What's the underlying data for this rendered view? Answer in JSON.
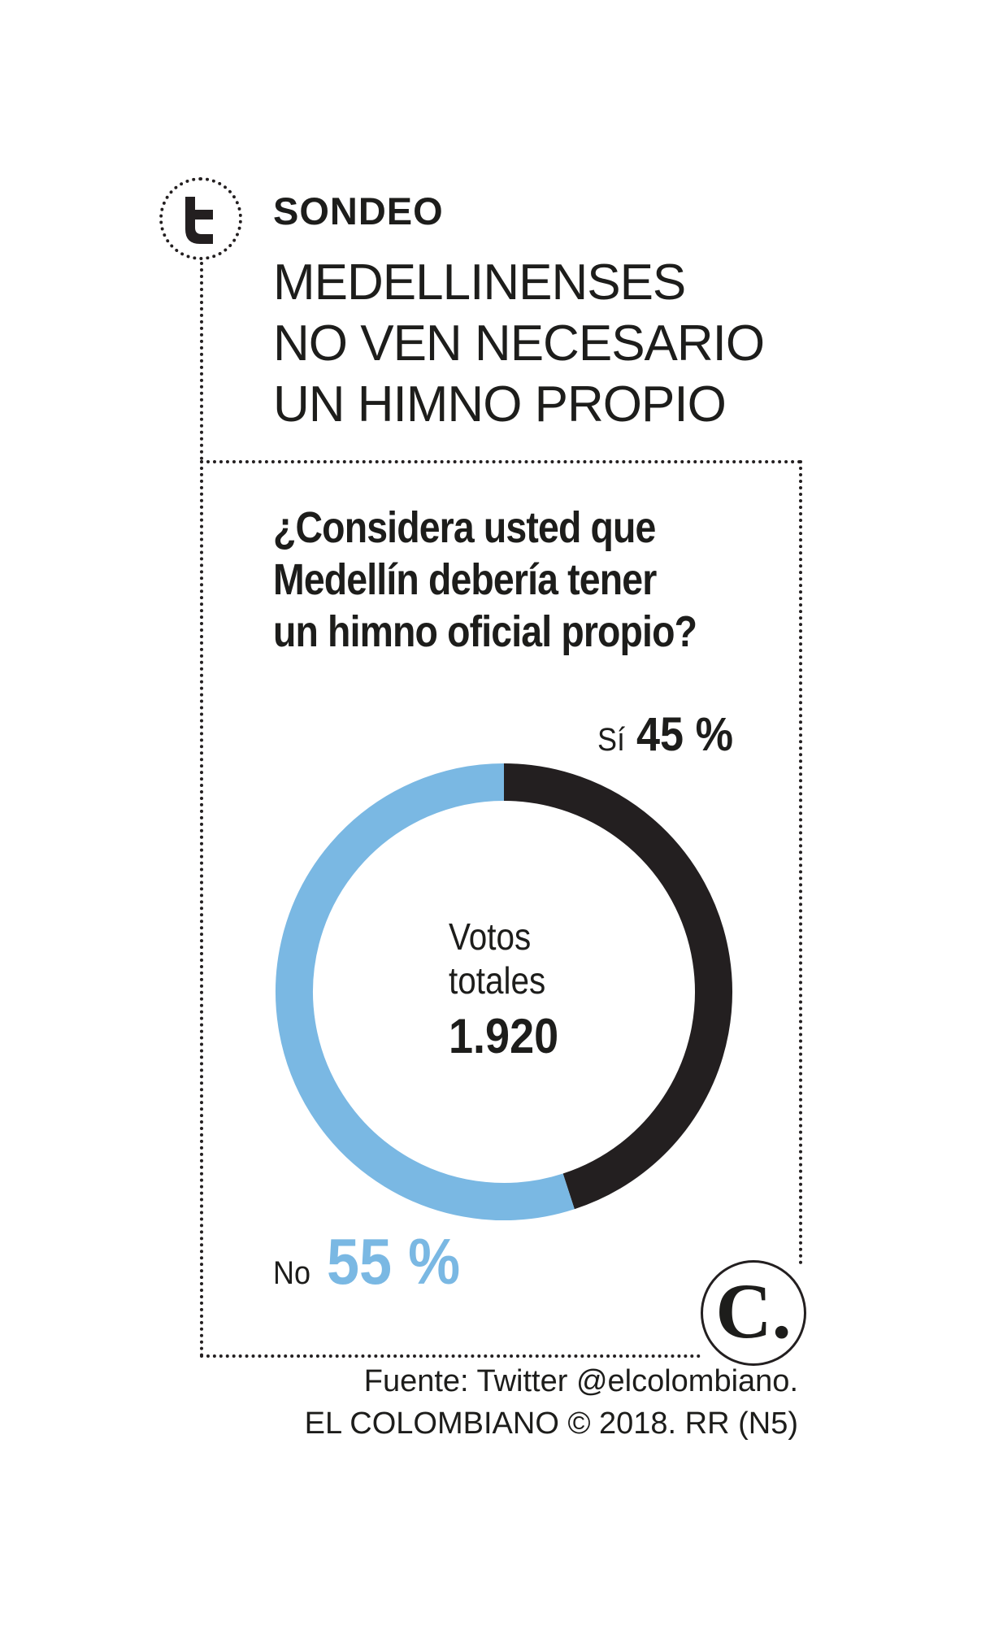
{
  "header": {
    "tag": "SONDEO",
    "headline": [
      "MEDELLINENSES",
      "NO VEN NECESARIO",
      "UN HIMNO PROPIO"
    ]
  },
  "question": [
    "¿Considera usted que",
    "Medellín debería tener",
    "un himno oficial propio?"
  ],
  "icons": {
    "source_icon": "twitter-t-icon",
    "brand_logo": "el-colombiano-logo"
  },
  "colors": {
    "si": "#231f20",
    "no": "#7ab8e3",
    "text": "#1d1d1b"
  },
  "chart_data": {
    "type": "pie",
    "variant": "donut",
    "slices": [
      {
        "label": "Sí",
        "value": 45,
        "display": "45 %"
      },
      {
        "label": "No",
        "value": 55,
        "display": "55 %"
      }
    ],
    "center_label": [
      "Votos",
      "totales"
    ],
    "center_value": "1.920"
  },
  "footer": {
    "source": "Fuente: Twitter @elcolombiano.",
    "credit": "EL COLOMBIANO © 2018. RR (N5)"
  },
  "logo": {
    "letter": "C."
  }
}
